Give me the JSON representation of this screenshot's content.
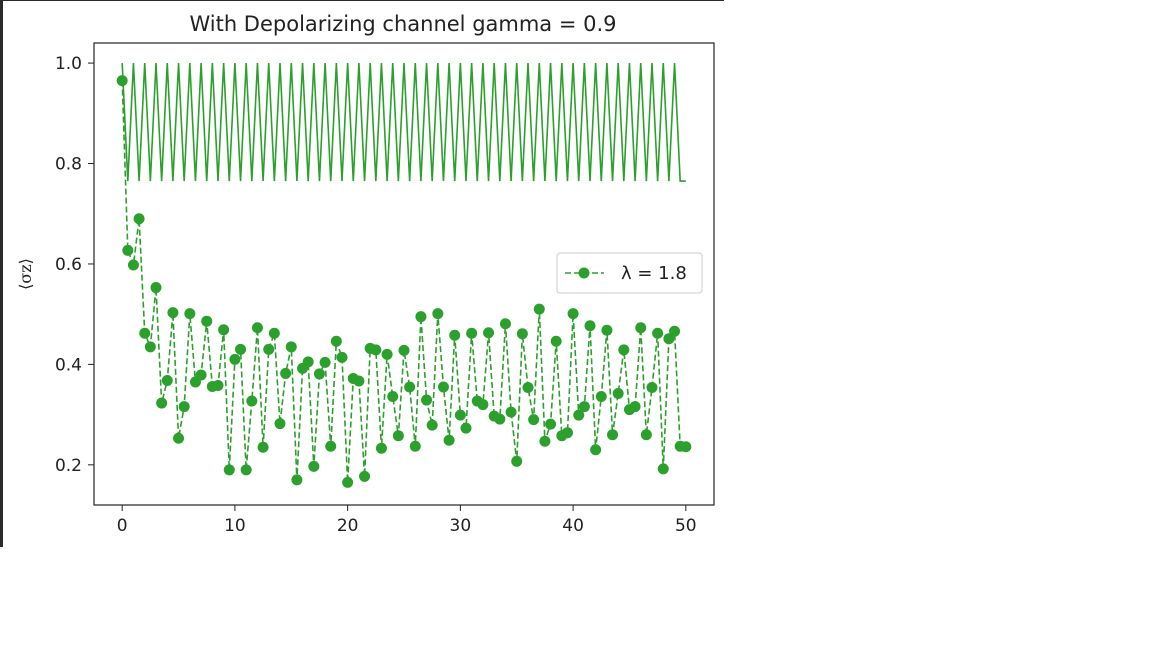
{
  "chart_data": {
    "type": "line",
    "title": "With Depolarizing channel gamma = 0.9",
    "xlabel": "",
    "ylabel": "⟨σz⟩",
    "xlim": [
      -2.5,
      52.5
    ],
    "ylim": [
      0.12,
      1.04
    ],
    "x_ticks": [
      "0",
      "10",
      "20",
      "30",
      "40",
      "50"
    ],
    "x_tick_values": [
      0,
      10,
      20,
      30,
      40,
      50
    ],
    "y_ticks": [
      "0.2",
      "0.4",
      "0.6",
      "0.8",
      "1.0"
    ],
    "y_tick_values": [
      0.2,
      0.4,
      0.6,
      0.8,
      1.0
    ],
    "grid": false,
    "legend": {
      "placement": "center-right",
      "entries": [
        "λ = 1.8"
      ]
    },
    "series": [
      {
        "name": "",
        "style": "solid",
        "color": "#2ca02c",
        "x": [
          0,
          0.5,
          1,
          1.5,
          2,
          2.5,
          3,
          3.5,
          4,
          4.5,
          5,
          5.5,
          6,
          6.5,
          7,
          7.5,
          8,
          8.5,
          9,
          9.5,
          10,
          10.5,
          11,
          11.5,
          12,
          12.5,
          13,
          13.5,
          14,
          14.5,
          15,
          15.5,
          16,
          16.5,
          17,
          17.5,
          18,
          18.5,
          19,
          19.5,
          20,
          20.5,
          21,
          21.5,
          22,
          22.5,
          23,
          23.5,
          24,
          24.5,
          25,
          25.5,
          26,
          26.5,
          27,
          27.5,
          28,
          28.5,
          29,
          29.5,
          30,
          30.5,
          31,
          31.5,
          32,
          32.5,
          33,
          33.5,
          34,
          34.5,
          35,
          35.5,
          36,
          36.5,
          37,
          37.5,
          38,
          38.5,
          39,
          39.5,
          40,
          40.5,
          41,
          41.5,
          42,
          42.5,
          43,
          43.5,
          44,
          44.5,
          45,
          45.5,
          46,
          46.5,
          47,
          47.5,
          48,
          48.5,
          49,
          49.5,
          50
        ],
        "y": [
          1.0,
          0.765,
          1.0,
          0.765,
          1.0,
          0.765,
          1.0,
          0.765,
          1.0,
          0.765,
          1.0,
          0.765,
          1.0,
          0.765,
          1.0,
          0.765,
          1.0,
          0.765,
          1.0,
          0.765,
          1.0,
          0.765,
          1.0,
          0.765,
          1.0,
          0.765,
          1.0,
          0.765,
          1.0,
          0.765,
          1.0,
          0.765,
          1.0,
          0.765,
          1.0,
          0.765,
          1.0,
          0.765,
          1.0,
          0.765,
          1.0,
          0.765,
          1.0,
          0.765,
          1.0,
          0.765,
          1.0,
          0.765,
          1.0,
          0.765,
          1.0,
          0.765,
          1.0,
          0.765,
          1.0,
          0.765,
          1.0,
          0.765,
          1.0,
          0.765,
          1.0,
          0.765,
          1.0,
          0.765,
          1.0,
          0.765,
          1.0,
          0.765,
          1.0,
          0.765,
          1.0,
          0.765,
          1.0,
          0.765,
          1.0,
          0.765,
          1.0,
          0.765,
          1.0,
          0.765,
          1.0,
          0.765,
          1.0,
          0.765,
          1.0,
          0.765,
          1.0,
          0.765,
          1.0,
          0.765,
          1.0,
          0.765,
          1.0,
          0.765,
          1.0,
          0.765,
          1.0,
          0.765,
          1.0,
          0.765,
          0.765
        ]
      },
      {
        "name": "λ = 1.8",
        "style": "dashed",
        "marker": "circle",
        "color": "#2ca02c",
        "x": [
          0.0,
          0.5,
          1.0,
          1.5,
          2.0,
          2.5,
          3.0,
          3.5,
          4.0,
          4.5,
          5.0,
          5.5,
          6.0,
          6.5,
          7.0,
          7.5,
          8.0,
          8.5,
          9.0,
          9.5,
          10.0,
          10.5,
          11.0,
          11.5,
          12.0,
          12.5,
          13.0,
          13.5,
          14.0,
          14.5,
          15.0,
          15.5,
          16.0,
          16.5,
          17.0,
          17.5,
          18.0,
          18.5,
          19.0,
          19.5,
          20.0,
          20.5,
          21.0,
          21.5,
          22.0,
          22.5,
          23.0,
          23.5,
          24.0,
          24.5,
          25.0,
          25.5,
          26.0,
          26.5,
          27.0,
          27.5,
          28.0,
          28.5,
          29.0,
          29.5,
          30.0,
          30.5,
          31.0,
          31.5,
          32.0,
          32.5,
          33.0,
          33.5,
          34.0,
          34.5,
          35.0,
          35.5,
          36.0,
          36.5,
          37.0,
          37.5,
          38.0,
          38.5,
          39.0,
          39.5,
          40.0,
          40.5,
          41.0,
          41.5,
          42.0,
          42.5,
          43.0,
          43.5,
          44.0,
          44.5,
          45.0,
          45.5,
          46.0,
          46.5,
          47.0,
          47.5,
          48.0,
          48.5,
          49.0,
          49.5,
          50.0
        ],
        "y": [
          0.965,
          0.627,
          0.598,
          0.69,
          0.462,
          0.435,
          0.553,
          0.323,
          0.368,
          0.503,
          0.253,
          0.316,
          0.501,
          0.365,
          0.379,
          0.486,
          0.356,
          0.358,
          0.469,
          0.19,
          0.41,
          0.43,
          0.19,
          0.327,
          0.473,
          0.235,
          0.43,
          0.462,
          0.282,
          0.382,
          0.435,
          0.17,
          0.392,
          0.405,
          0.197,
          0.381,
          0.404,
          0.237,
          0.446,
          0.414,
          0.165,
          0.372,
          0.367,
          0.177,
          0.432,
          0.429,
          0.233,
          0.42,
          0.336,
          0.258,
          0.428,
          0.355,
          0.237,
          0.495,
          0.329,
          0.279,
          0.501,
          0.355,
          0.249,
          0.458,
          0.299,
          0.273,
          0.462,
          0.327,
          0.32,
          0.463,
          0.297,
          0.291,
          0.481,
          0.305,
          0.207,
          0.461,
          0.354,
          0.29,
          0.51,
          0.247,
          0.281,
          0.446,
          0.258,
          0.264,
          0.501,
          0.299,
          0.316,
          0.477,
          0.23,
          0.336,
          0.468,
          0.26,
          0.342,
          0.429,
          0.31,
          0.316,
          0.473,
          0.26,
          0.354,
          0.462,
          0.192,
          0.451,
          0.466,
          0.237,
          0.236
        ]
      }
    ]
  }
}
